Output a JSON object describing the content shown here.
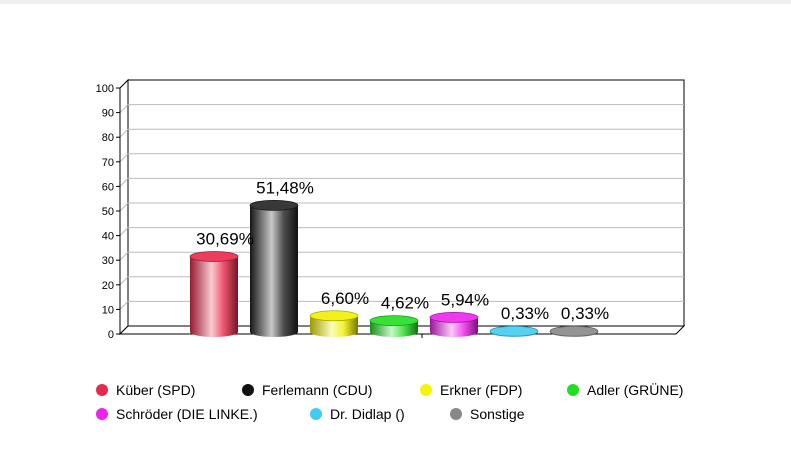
{
  "chart_data": {
    "type": "bar",
    "categories": [
      "Küber (SPD)",
      "Ferlemann (CDU)",
      "Erkner (FDP)",
      "Adler (GRÜNE)",
      "Schröder (DIE LINKE.)",
      "Dr. Didlap ()",
      "Sonstige"
    ],
    "values": [
      30.69,
      51.48,
      6.6,
      4.62,
      5.94,
      0.33,
      0.33
    ],
    "data_labels": [
      "30,69%",
      "51,48%",
      "6,60%",
      "4,62%",
      "5,94%",
      "0,33%",
      "0,33%"
    ],
    "colors": [
      "#e8294a",
      "#222222",
      "#f0f000",
      "#22dd22",
      "#ee22ee",
      "#44ccf0",
      "#888888"
    ],
    "yticks": [
      "0",
      "10",
      "20",
      "30",
      "40",
      "50",
      "60",
      "70",
      "80",
      "90",
      "100"
    ],
    "ylim": [
      0,
      100
    ],
    "grid": true,
    "legend_position": "bottom",
    "title": "",
    "xlabel": "",
    "ylabel": ""
  },
  "legend": {
    "rows": [
      [
        {
          "label": "Küber (SPD)",
          "color": "#e8294a"
        },
        {
          "label": "Ferlemann (CDU)",
          "color": "#111111"
        },
        {
          "label": "Erkner (FDP)",
          "color": "#f5f500"
        },
        {
          "label": "Adler (GRÜNE)",
          "color": "#22dd22"
        }
      ],
      [
        {
          "label": "Schröder (DIE LINKE.)",
          "color": "#ee22ee"
        },
        {
          "label": "Dr. Didlap ()",
          "color": "#44ccf0"
        },
        {
          "label": "Sonstige",
          "color": "#888888"
        }
      ]
    ]
  }
}
